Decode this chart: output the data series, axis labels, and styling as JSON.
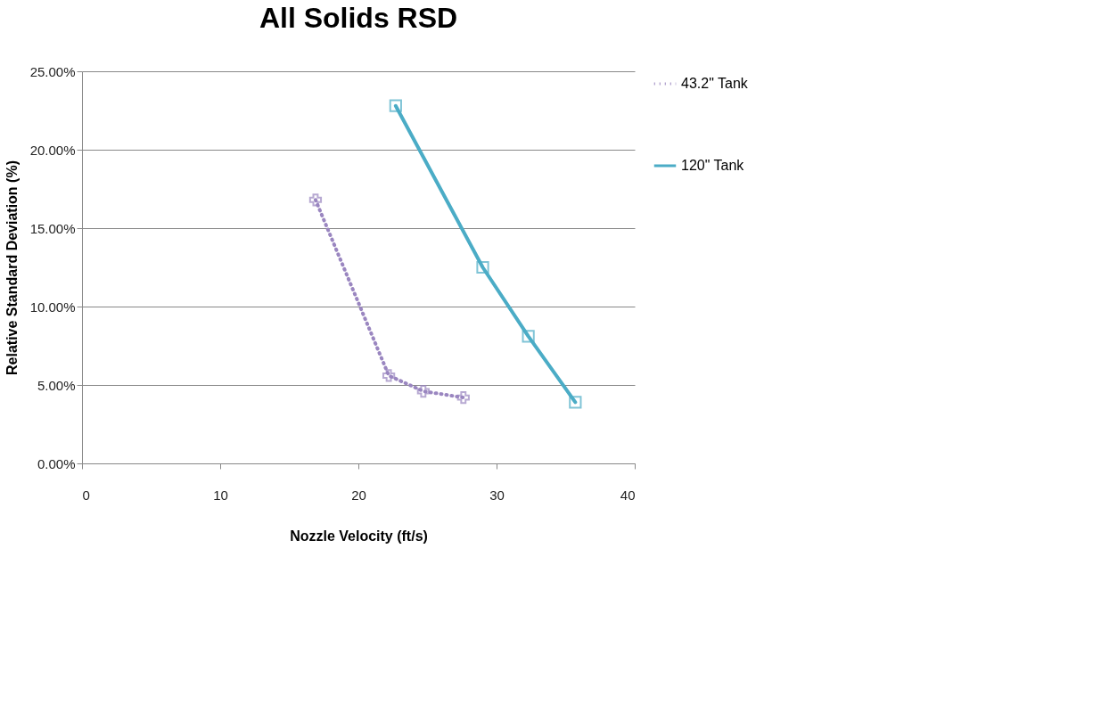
{
  "chart_data": {
    "type": "line",
    "title": "All Solids RSD",
    "xlabel": "Nozzle Velocity (ft/s)",
    "ylabel": "Relative Standard Deviation  (%)",
    "series": [
      {
        "name": "43.2\" Tank",
        "color": "#9a86c0",
        "x": [
          16.9,
          22.2,
          24.7,
          27.6
        ],
        "values": [
          16.8,
          5.6,
          4.6,
          4.2
        ],
        "marker": "cross",
        "line_style": "dotted"
      },
      {
        "name": "120\" Tank",
        "color": "#4bacc6",
        "x": [
          22.7,
          29.0,
          32.3,
          35.7
        ],
        "values": [
          22.8,
          12.5,
          8.1,
          3.9
        ],
        "marker": "square",
        "line_style": "solid"
      }
    ],
    "xlim": [
      0,
      40
    ],
    "xticks": [
      0,
      10,
      20,
      30,
      40
    ],
    "ylim": [
      0,
      25
    ],
    "yticks": [
      {
        "value": 0,
        "label": "0.00%"
      },
      {
        "value": 5,
        "label": "5.00%"
      },
      {
        "value": 10,
        "label": "10.00%"
      },
      {
        "value": 15,
        "label": "15.00%"
      },
      {
        "value": 20,
        "label": "20.00%"
      },
      {
        "value": 25,
        "label": "25.00%"
      }
    ],
    "grid": "y",
    "legend": "right"
  }
}
